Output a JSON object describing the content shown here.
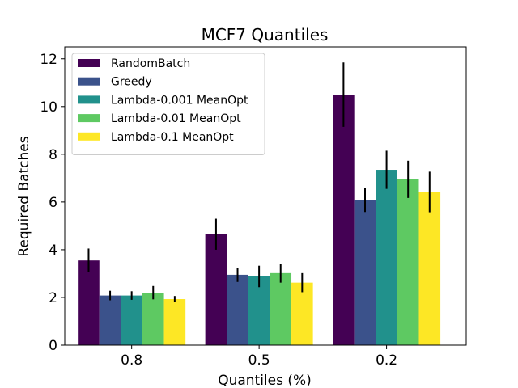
{
  "chart_data": {
    "type": "bar",
    "title": "MCF7 Quantiles",
    "xlabel": "Quantiles (%)",
    "ylabel": "Required Batches",
    "categories": [
      "0.8",
      "0.5",
      "0.2"
    ],
    "ylim": [
      0,
      12.5
    ],
    "yticks": [
      0,
      2,
      4,
      6,
      8,
      10,
      12
    ],
    "legend_position": "top-left",
    "grid": false,
    "series": [
      {
        "name": "RandomBatch",
        "color": "#440154",
        "values": [
          3.55,
          4.65,
          10.5
        ],
        "errors": [
          0.5,
          0.65,
          1.35
        ]
      },
      {
        "name": "Greedy",
        "color": "#3b528b",
        "values": [
          2.08,
          2.95,
          6.08
        ],
        "errors": [
          0.2,
          0.3,
          0.5
        ]
      },
      {
        "name": "Lambda-0.001 MeanOpt",
        "color": "#21918c",
        "values": [
          2.08,
          2.88,
          7.35
        ],
        "errors": [
          0.18,
          0.45,
          0.8
        ]
      },
      {
        "name": "Lambda-0.01 MeanOpt",
        "color": "#5ec962",
        "values": [
          2.2,
          3.02,
          6.95
        ],
        "errors": [
          0.28,
          0.4,
          0.78
        ]
      },
      {
        "name": "Lambda-0.1 MeanOpt",
        "color": "#fde725",
        "values": [
          1.93,
          2.62,
          6.42
        ],
        "errors": [
          0.13,
          0.4,
          0.85
        ]
      }
    ]
  }
}
